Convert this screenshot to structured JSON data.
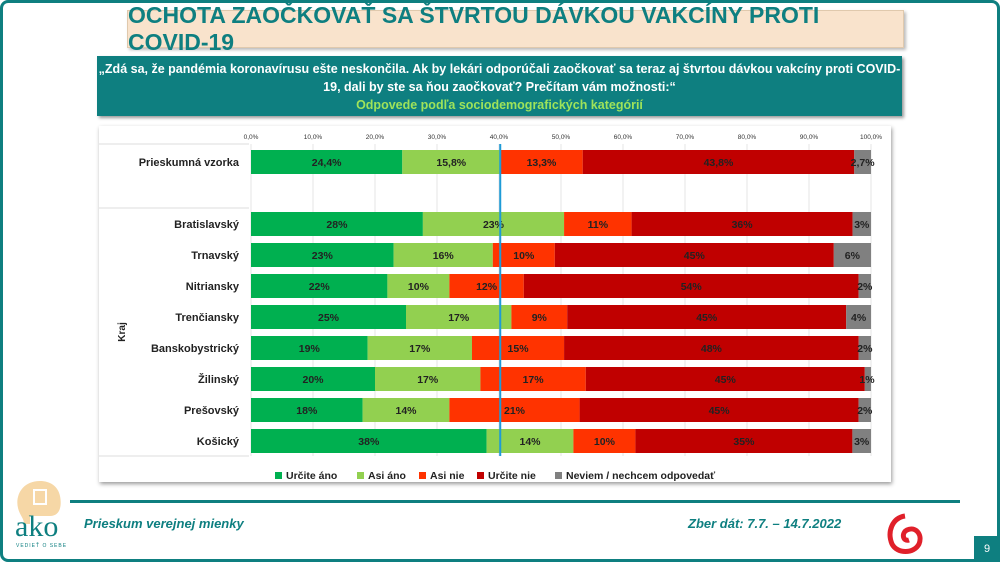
{
  "header": {
    "title": "OCHOTA ZAOČKOVAŤ SA ŠTVRTOU DÁVKOU VAKCÍNY PROTI COVID-19"
  },
  "question": {
    "text": "„Zdá sa, že pandémia koronavírusu ešte neskončila. Ak by lekári odporúčali zaočkovať sa teraz aj štvrtou dávkou vakcíny proti COVID-19, dali by ste sa ňou zaočkovať? Prečítam vám možnosti:“",
    "subtitle": "Odpovede podľa sociodemografických kategórií"
  },
  "footer": {
    "left": "Prieskum verejnej mienky",
    "right": "Zber dát: 7.7. – 14.7.2022",
    "page": "9",
    "logo": "ako",
    "logo_tagline": "VEDIEŤ O SEBE"
  },
  "chart_data": {
    "type": "bar",
    "orientation": "horizontal-stacked-100",
    "xlim": [
      0,
      100
    ],
    "x_ticks": [
      "0,0%",
      "10,0%",
      "20,0%",
      "30,0%",
      "40,0%",
      "50,0%",
      "60,0%",
      "70,0%",
      "80,0%",
      "90,0%",
      "100,0%"
    ],
    "grid": true,
    "group_label": "Kraj",
    "reference_line": 40.2,
    "legend_position": "bottom",
    "series": [
      {
        "name": "Určite áno",
        "color": "#00b050"
      },
      {
        "name": "Asi áno",
        "color": "#92d050"
      },
      {
        "name": "Asi nie",
        "color": "#ff3300"
      },
      {
        "name": "Určite nie",
        "color": "#c00000"
      },
      {
        "name": "Neviem / nechcem odpovedať",
        "color": "#808080"
      }
    ],
    "rows": [
      {
        "category": "Prieskumná vzorka",
        "values": [
          24.4,
          15.8,
          13.3,
          43.8,
          2.7
        ],
        "labels": [
          "24,4%",
          "15,8%",
          "13,3%",
          "43,8%",
          "2,7%"
        ]
      },
      {
        "category": "Bratislavský",
        "group": "Kraj",
        "values": [
          28,
          23,
          11,
          36,
          3
        ],
        "labels": [
          "28%",
          "23%",
          "11%",
          "36%",
          "3%"
        ]
      },
      {
        "category": "Trnavský",
        "group": "Kraj",
        "values": [
          23,
          16,
          10,
          45,
          6
        ],
        "labels": [
          "23%",
          "16%",
          "10%",
          "45%",
          "6%"
        ]
      },
      {
        "category": "Nitriansky",
        "group": "Kraj",
        "values": [
          22,
          10,
          12,
          54,
          2
        ],
        "labels": [
          "22%",
          "10%",
          "12%",
          "54%",
          "2%"
        ]
      },
      {
        "category": "Trenčiansky",
        "group": "Kraj",
        "values": [
          25,
          17,
          9,
          45,
          4
        ],
        "labels": [
          "25%",
          "17%",
          "9%",
          "45%",
          "4%"
        ]
      },
      {
        "category": "Banskobystrický",
        "group": "Kraj",
        "values": [
          19,
          17,
          15,
          48,
          2
        ],
        "labels": [
          "19%",
          "17%",
          "15%",
          "48%",
          "2%"
        ]
      },
      {
        "category": "Žilinský",
        "group": "Kraj",
        "values": [
          20,
          17,
          17,
          45,
          1
        ],
        "labels": [
          "20%",
          "17%",
          "17%",
          "45%",
          "1%"
        ]
      },
      {
        "category": "Prešovský",
        "group": "Kraj",
        "values": [
          18,
          14,
          21,
          45,
          2
        ],
        "labels": [
          "18%",
          "14%",
          "21%",
          "45%",
          "2%"
        ]
      },
      {
        "category": "Košický",
        "group": "Kraj",
        "values": [
          38,
          14,
          10,
          35,
          3
        ],
        "labels": [
          "38%",
          "14%",
          "10%",
          "35%",
          "3%"
        ]
      }
    ]
  }
}
